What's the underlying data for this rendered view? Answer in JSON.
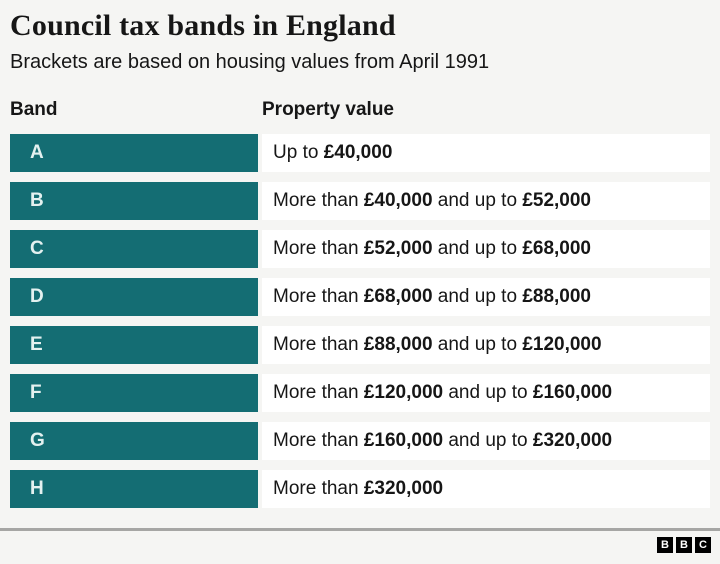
{
  "header": {
    "title": "Council tax bands in England",
    "subtitle": "Brackets are based on housing values from April 1991"
  },
  "table": {
    "band_header": "Band",
    "value_header": "Property value",
    "rows": [
      {
        "band": "A",
        "segments": [
          {
            "text": "Up to ",
            "bold": false
          },
          {
            "text": "£40,000",
            "bold": true
          }
        ]
      },
      {
        "band": "B",
        "segments": [
          {
            "text": "More than ",
            "bold": false
          },
          {
            "text": "£40,000",
            "bold": true
          },
          {
            "text": " and up to ",
            "bold": false
          },
          {
            "text": "£52,000",
            "bold": true
          }
        ]
      },
      {
        "band": "C",
        "segments": [
          {
            "text": "More than ",
            "bold": false
          },
          {
            "text": "£52,000",
            "bold": true
          },
          {
            "text": " and up to ",
            "bold": false
          },
          {
            "text": "£68,000",
            "bold": true
          }
        ]
      },
      {
        "band": "D",
        "segments": [
          {
            "text": "More than ",
            "bold": false
          },
          {
            "text": "£68,000",
            "bold": true
          },
          {
            "text": " and up to ",
            "bold": false
          },
          {
            "text": "£88,000",
            "bold": true
          }
        ]
      },
      {
        "band": "E",
        "segments": [
          {
            "text": "More than ",
            "bold": false
          },
          {
            "text": "£88,000",
            "bold": true
          },
          {
            "text": " and up to ",
            "bold": false
          },
          {
            "text": "£120,000",
            "bold": true
          }
        ]
      },
      {
        "band": "F",
        "segments": [
          {
            "text": "More than ",
            "bold": false
          },
          {
            "text": "£120,000",
            "bold": true
          },
          {
            "text": " and up to ",
            "bold": false
          },
          {
            "text": "£160,000",
            "bold": true
          }
        ]
      },
      {
        "band": "G",
        "segments": [
          {
            "text": "More than ",
            "bold": false
          },
          {
            "text": "£160,000",
            "bold": true
          },
          {
            "text": " and up to ",
            "bold": false
          },
          {
            "text": "£320,000",
            "bold": true
          }
        ]
      },
      {
        "band": "H",
        "segments": [
          {
            "text": "More than ",
            "bold": false
          },
          {
            "text": "£320,000",
            "bold": true
          }
        ]
      }
    ]
  },
  "footer": {
    "logo_blocks": [
      "B",
      "B",
      "C"
    ]
  },
  "chart_data": {
    "type": "table",
    "title": "Council tax bands in England",
    "subtitle": "Brackets are based on housing values from April 1991",
    "columns": [
      "Band",
      "Property value"
    ],
    "rows": [
      [
        "A",
        "Up to £40,000"
      ],
      [
        "B",
        "More than £40,000 and up to £52,000"
      ],
      [
        "C",
        "More than £52,000 and up to £68,000"
      ],
      [
        "D",
        "More than £68,000 and up to £88,000"
      ],
      [
        "E",
        "More than £88,000 and up to £120,000"
      ],
      [
        "F",
        "More than £120,000 and up to £160,000"
      ],
      [
        "G",
        "More than £160,000 and up to £320,000"
      ],
      [
        "H",
        "More than £320,000"
      ]
    ],
    "bands_numeric": [
      {
        "band": "A",
        "min_gbp": null,
        "max_gbp": 40000
      },
      {
        "band": "B",
        "min_gbp": 40000,
        "max_gbp": 52000
      },
      {
        "band": "C",
        "min_gbp": 52000,
        "max_gbp": 68000
      },
      {
        "band": "D",
        "min_gbp": 68000,
        "max_gbp": 88000
      },
      {
        "band": "E",
        "min_gbp": 88000,
        "max_gbp": 120000
      },
      {
        "band": "F",
        "min_gbp": 120000,
        "max_gbp": 160000
      },
      {
        "band": "G",
        "min_gbp": 160000,
        "max_gbp": 320000
      },
      {
        "band": "H",
        "min_gbp": 320000,
        "max_gbp": null
      }
    ]
  },
  "colors": {
    "teal": "#146d73",
    "page_background": "#f5f5f3",
    "row_background": "#ffffff",
    "divider": "#a6a6a4",
    "text": "#161616",
    "band_letter": "#e4f1f0",
    "logo_block": "#000000",
    "logo_letter": "#ffffff"
  }
}
